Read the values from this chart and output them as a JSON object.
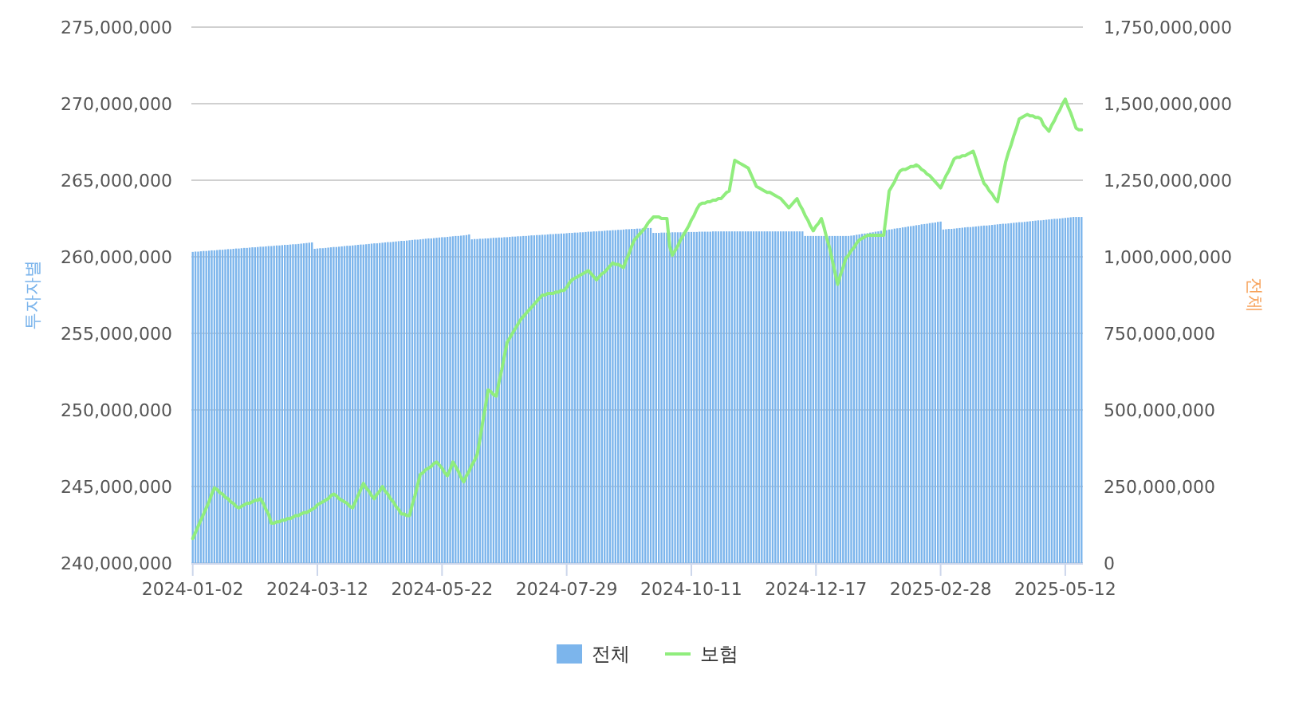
{
  "chart_data": {
    "type": "bar",
    "ylabel": "투자자별",
    "y2label": "전체",
    "grid": "y",
    "legend": "bottom",
    "ylim": [
      240000000,
      275000000
    ],
    "yticks": [
      {
        "value": 240000000,
        "label": "240,000,000"
      },
      {
        "value": 245000000,
        "label": "245,000,000"
      },
      {
        "value": 250000000,
        "label": "250,000,000"
      },
      {
        "value": 255000000,
        "label": "255,000,000"
      },
      {
        "value": 260000000,
        "label": "260,000,000"
      },
      {
        "value": 265000000,
        "label": "265,000,000"
      },
      {
        "value": 270000000,
        "label": "270,000,000"
      },
      {
        "value": 275000000,
        "label": "275,000,000"
      }
    ],
    "y2lim": [
      0,
      1750000000
    ],
    "y2ticks": [
      0,
      {
        "value": 250000000,
        "label": "250,000,000"
      },
      {
        "value": 500000000,
        "label": "500,000,000"
      },
      {
        "value": 750000000,
        "label": "750,000,000"
      },
      {
        "value": 1000000000,
        "label": "1,000,000,000"
      },
      {
        "value": 1250000000,
        "label": "1,250,000,000"
      },
      {
        "value": 1500000000,
        "label": "1,500,000,000"
      },
      {
        "value": 1750000000,
        "label": "1,750,000,000"
      }
    ],
    "categories": [
      "2024-01-02",
      null,
      null,
      null,
      null,
      null,
      null,
      null,
      null,
      null,
      null,
      null,
      null,
      null,
      null,
      null,
      null,
      null,
      null,
      null,
      null,
      null,
      null,
      null,
      null,
      null,
      null,
      null,
      null,
      null,
      null,
      null,
      null,
      null,
      null,
      null,
      null,
      null,
      null,
      null,
      null,
      null,
      null,
      null,
      null,
      null,
      "2024-03-12",
      null,
      null,
      null,
      null,
      null,
      null,
      null,
      null,
      null,
      null,
      null,
      null,
      null,
      null,
      null,
      null,
      null,
      null,
      null,
      null,
      null,
      null,
      null,
      null,
      null,
      null,
      null,
      null,
      null,
      null,
      null,
      null,
      null,
      null,
      null,
      null,
      null,
      null,
      null,
      null,
      null,
      null,
      null,
      null,
      null,
      "2024-05-22",
      null,
      null,
      null,
      null,
      null,
      null,
      null,
      null,
      null,
      null,
      null,
      null,
      null,
      null,
      null,
      null,
      null,
      null,
      null,
      null,
      null,
      null,
      null,
      null,
      null,
      null,
      null,
      null,
      null,
      null,
      null,
      null,
      null,
      null,
      null,
      null,
      null,
      null,
      null,
      null,
      null,
      null,
      null,
      null,
      null,
      "2024-07-29",
      null,
      null,
      null,
      null,
      null,
      null,
      null,
      null,
      null,
      null,
      null,
      null,
      null,
      null,
      null,
      null,
      null,
      null,
      null,
      null,
      null,
      null,
      null,
      null,
      null,
      null,
      null,
      null,
      null,
      null,
      null,
      null,
      null,
      null,
      null,
      null,
      null,
      null,
      null,
      null,
      null,
      null,
      null,
      null,
      null,
      "2024-10-11",
      null,
      null,
      null,
      null,
      null,
      null,
      null,
      null,
      null,
      null,
      null,
      null,
      null,
      null,
      null,
      null,
      null,
      null,
      null,
      null,
      null,
      null,
      null,
      null,
      null,
      null,
      null,
      null,
      null,
      null,
      null,
      null,
      null,
      null,
      null,
      null,
      null,
      null,
      null,
      null,
      null,
      null,
      null,
      null,
      null,
      "2024-12-17",
      null,
      null,
      null,
      null,
      null,
      null,
      null,
      null,
      null,
      null,
      null,
      null,
      null,
      null,
      null,
      null,
      null,
      null,
      null,
      null,
      null,
      null,
      null,
      null,
      null,
      null,
      null,
      null,
      null,
      null,
      null,
      null,
      null,
      null,
      null,
      null,
      null,
      null,
      null,
      null,
      null,
      null,
      null,
      null,
      null,
      "2025-02-28",
      null,
      null,
      null,
      null,
      null,
      null,
      null,
      null,
      null,
      null,
      null,
      null,
      null,
      null,
      null,
      null,
      null,
      null,
      null,
      null,
      null,
      null,
      null,
      null,
      null,
      null,
      null,
      null,
      null,
      null,
      null,
      null,
      null,
      null,
      null,
      null,
      null,
      null,
      null,
      null,
      null,
      null,
      null,
      null,
      null,
      "2025-05-12",
      null,
      null,
      null,
      null,
      null,
      null
    ],
    "series": [
      {
        "name": "전체",
        "type": "bar",
        "axis": "y2",
        "color": "#7cb5ec",
        "values": [
          1016000000.0,
          1017000000.0,
          1017000000.0,
          1018000000.0,
          1019000000.0,
          1019000000.0,
          1020000000.0,
          1021000000.0,
          1021000000.0,
          1022000000.0,
          1023000000.0,
          1023000000.0,
          1024000000.0,
          1025000000.0,
          1025000000.0,
          1026000000.0,
          1027000000.0,
          1027000000.0,
          1028000000.0,
          1029000000.0,
          1029000000.0,
          1030000000.0,
          1031000000.0,
          1031000000.0,
          1032000000.0,
          1033000000.0,
          1033000000.0,
          1034000000.0,
          1035000000.0,
          1035000000.0,
          1036000000.0,
          1037000000.0,
          1037000000.0,
          1038000000.0,
          1039000000.0,
          1039000000.0,
          1040000000.0,
          1041000000.0,
          1041000000.0,
          1042000000.0,
          1043000000.0,
          1044000000.0,
          1045000000.0,
          1046000000.0,
          1047000000.0,
          1026000000.0,
          1027000000.0,
          1028000000.0,
          1028000000.0,
          1029000000.0,
          1030000000.0,
          1031000000.0,
          1032000000.0,
          1032000000.0,
          1033000000.0,
          1034000000.0,
          1035000000.0,
          1036000000.0,
          1036000000.0,
          1037000000.0,
          1038000000.0,
          1039000000.0,
          1040000000.0,
          1040000000.0,
          1041000000.0,
          1042000000.0,
          1043000000.0,
          1044000000.0,
          1044000000.0,
          1045000000.0,
          1046000000.0,
          1047000000.0,
          1048000000.0,
          1048000000.0,
          1049000000.0,
          1050000000.0,
          1051000000.0,
          1052000000.0,
          1052000000.0,
          1053000000.0,
          1054000000.0,
          1055000000.0,
          1056000000.0,
          1056000000.0,
          1057000000.0,
          1058000000.0,
          1059000000.0,
          1060000000.0,
          1060000000.0,
          1061000000.0,
          1062000000.0,
          1063000000.0,
          1064000000.0,
          1064000000.0,
          1065000000.0,
          1066000000.0,
          1067000000.0,
          1068000000.0,
          1068000000.0,
          1069000000.0,
          1070000000.0,
          1071000000.0,
          1073000000.0,
          1057000000.0,
          1058000000.0,
          1058000000.0,
          1059000000.0,
          1059000000.0,
          1060000000.0,
          1060000000.0,
          1061000000.0,
          1062000000.0,
          1062000000.0,
          1063000000.0,
          1063000000.0,
          1064000000.0,
          1064000000.0,
          1065000000.0,
          1066000000.0,
          1066000000.0,
          1067000000.0,
          1067000000.0,
          1068000000.0,
          1068000000.0,
          1069000000.0,
          1070000000.0,
          1070000000.0,
          1071000000.0,
          1071000000.0,
          1072000000.0,
          1072000000.0,
          1073000000.0,
          1074000000.0,
          1074000000.0,
          1075000000.0,
          1075000000.0,
          1076000000.0,
          1076000000.0,
          1077000000.0,
          1078000000.0,
          1078000000.0,
          1079000000.0,
          1079000000.0,
          1080000000.0,
          1080000000.0,
          1081000000.0,
          1082000000.0,
          1082000000.0,
          1083000000.0,
          1083000000.0,
          1084000000.0,
          1084000000.0,
          1085000000.0,
          1086000000.0,
          1086000000.0,
          1087000000.0,
          1087000000.0,
          1088000000.0,
          1088000000.0,
          1089000000.0,
          1090000000.0,
          1090000000.0,
          1091000000.0,
          1091000000.0,
          1092000000.0,
          1092000000.0,
          1093000000.0,
          1093000000.0,
          1094000000.0,
          1094000000.0,
          1078000000.0,
          1078000000.0,
          1078000000.0,
          1079000000.0,
          1079000000.0,
          1079000000.0,
          1079000000.0,
          1080000000.0,
          1080000000.0,
          1080000000.0,
          1080000000.0,
          1080000000.0,
          1081000000.0,
          1081000000.0,
          1081000000.0,
          1081000000.0,
          1081000000.0,
          1082000000.0,
          1082000000.0,
          1082000000.0,
          1082000000.0,
          1082000000.0,
          1083000000.0,
          1083000000.0,
          1083000000.0,
          1083000000.0,
          1083000000.0,
          1083000000.0,
          1083000000.0,
          1083000000.0,
          1083000000.0,
          1083000000.0,
          1083000000.0,
          1083000000.0,
          1083000000.0,
          1083000000.0,
          1083000000.0,
          1083000000.0,
          1083000000.0,
          1083000000.0,
          1083000000.0,
          1083000000.0,
          1083000000.0,
          1083000000.0,
          1083000000.0,
          1083000000.0,
          1083000000.0,
          1083000000.0,
          1083000000.0,
          1083000000.0,
          1083000000.0,
          1083000000.0,
          1083000000.0,
          1083000000.0,
          1083000000.0,
          1083000000.0,
          1068000000.0,
          1068000000.0,
          1068000000.0,
          1068000000.0,
          1068000000.0,
          1068000000.0,
          1068000000.0,
          1068000000.0,
          1068000000.0,
          1068000000.0,
          1068000000.0,
          1068000000.0,
          1068000000.0,
          1068000000.0,
          1068000000.0,
          1068000000.0,
          1068000000.0,
          1069000000.0,
          1070000000.0,
          1072000000.0,
          1073000000.0,
          1075000000.0,
          1076000000.0,
          1077000000.0,
          1079000000.0,
          1080000000.0,
          1082000000.0,
          1083000000.0,
          1085000000.0,
          1086000000.0,
          1087000000.0,
          1089000000.0,
          1090000000.0,
          1092000000.0,
          1093000000.0,
          1094000000.0,
          1096000000.0,
          1097000000.0,
          1099000000.0,
          1100000000.0,
          1101000000.0,
          1103000000.0,
          1104000000.0,
          1106000000.0,
          1107000000.0,
          1108000000.0,
          1110000000.0,
          1111000000.0,
          1112000000.0,
          1114000000.0,
          1115000000.0,
          1089000000.0,
          1090000000.0,
          1091000000.0,
          1091000000.0,
          1092000000.0,
          1093000000.0,
          1094000000.0,
          1095000000.0,
          1096000000.0,
          1097000000.0,
          1097000000.0,
          1098000000.0,
          1099000000.0,
          1100000000.0,
          1101000000.0,
          1102000000.0,
          1102000000.0,
          1103000000.0,
          1104000000.0,
          1105000000.0,
          1106000000.0,
          1107000000.0,
          1108000000.0,
          1108000000.0,
          1109000000.0,
          1110000000.0,
          1111000000.0,
          1112000000.0,
          1113000000.0,
          1113000000.0,
          1114000000.0,
          1115000000.0,
          1116000000.0,
          1117000000.0,
          1118000000.0,
          1119000000.0,
          1119000000.0,
          1120000000.0,
          1121000000.0,
          1122000000.0,
          1123000000.0,
          1124000000.0,
          1124000000.0,
          1125000000.0,
          1126000000.0,
          1127000000.0,
          1128000000.0,
          1129000000.0,
          1130000000.0,
          1130000000.0,
          1130000000.0,
          1130000000.0
        ]
      },
      {
        "name": "보험",
        "type": "line",
        "color": "#90ed7d",
        "values": [
          241600000.0,
          242000000.0,
          242400000.0,
          242800000.0,
          243200000.0,
          243600000.0,
          244000000.0,
          244500000.0,
          244900000.0,
          244800000.0,
          244600000.0,
          244500000.0,
          244300000.0,
          244200000.0,
          244000000.0,
          243900000.0,
          243700000.0,
          243600000.0,
          243700000.0,
          243800000.0,
          243900000.0,
          243900000.0,
          244000000.0,
          244100000.0,
          244100000.0,
          244200000.0,
          243900000.0,
          243500000.0,
          243200000.0,
          242600000.0,
          242600000.0,
          242700000.0,
          242700000.0,
          242800000.0,
          242800000.0,
          242900000.0,
          242900000.0,
          243000000.0,
          243100000.0,
          243100000.0,
          243200000.0,
          243300000.0,
          243300000.0,
          243400000.0,
          243500000.0,
          243600000.0,
          243800000.0,
          243900000.0,
          244000000.0,
          244100000.0,
          244200000.0,
          244400000.0,
          244500000.0,
          244400000.0,
          244200000.0,
          244100000.0,
          244000000.0,
          243900000.0,
          243700000.0,
          243600000.0,
          244000000.0,
          244400000.0,
          244800000.0,
          245200000.0,
          244900000.0,
          244700000.0,
          244400000.0,
          244200000.0,
          244500000.0,
          244700000.0,
          245000000.0,
          244700000.0,
          244500000.0,
          244200000.0,
          244000000.0,
          243700000.0,
          243500000.0,
          243200000.0,
          243200000.0,
          243100000.0,
          243100000.0,
          243800000.0,
          244400000.0,
          245100000.0,
          245800000.0,
          245900000.0,
          246100000.0,
          246200000.0,
          246300000.0,
          246500000.0,
          246600000.0,
          246400000.0,
          246200000.0,
          245900000.0,
          245700000.0,
          246100000.0,
          246600000.0,
          246300000.0,
          246000000.0,
          245600000.0,
          245300000.0,
          245700000.0,
          246000000.0,
          246400000.0,
          246700000.0,
          247100000.0,
          248100000.0,
          249200000.0,
          250200000.0,
          251300000.0,
          251200000.0,
          251000000.0,
          250900000.0,
          251800000.0,
          252600000.0,
          253500000.0,
          254400000.0,
          254700000.0,
          255000000.0,
          255300000.0,
          255600000.0,
          255900000.0,
          256100000.0,
          256300000.0,
          256500000.0,
          256700000.0,
          256900000.0,
          257100000.0,
          257300000.0,
          257500000.0,
          257500000.0,
          257600000.0,
          257600000.0,
          257600000.0,
          257700000.0,
          257700000.0,
          257800000.0,
          257800000.0,
          258000000.0,
          258300000.0,
          258500000.0,
          258600000.0,
          258700000.0,
          258800000.0,
          258900000.0,
          259000000.0,
          259100000.0,
          258900000.0,
          258700000.0,
          258500000.0,
          258700000.0,
          258900000.0,
          259000000.0,
          259200000.0,
          259400000.0,
          259600000.0,
          259500000.0,
          259500000.0,
          259400000.0,
          259300000.0,
          259800000.0,
          260200000.0,
          260700000.0,
          261100000.0,
          261300000.0,
          261500000.0,
          261700000.0,
          261900000.0,
          262200000.0,
          262400000.0,
          262600000.0,
          262600000.0,
          262600000.0,
          262500000.0,
          262500000.0,
          262500000.0,
          260700000.0,
          260100000.0,
          260400000.0,
          260700000.0,
          261100000.0,
          261400000.0,
          261700000.0,
          262000000.0,
          262400000.0,
          262700000.0,
          263100000.0,
          263400000.0,
          263500000.0,
          263500000.0,
          263600000.0,
          263600000.0,
          263700000.0,
          263700000.0,
          263800000.0,
          263800000.0,
          264000000.0,
          264200000.0,
          264300000.0,
          265300000.0,
          266300000.0,
          266200000.0,
          266100000.0,
          266000000.0,
          265900000.0,
          265800000.0,
          265400000.0,
          265000000.0,
          264600000.0,
          264500000.0,
          264400000.0,
          264300000.0,
          264200000.0,
          264200000.0,
          264100000.0,
          264000000.0,
          263900000.0,
          263800000.0,
          263600000.0,
          263400000.0,
          263200000.0,
          263400000.0,
          263600000.0,
          263800000.0,
          263400000.0,
          263100000.0,
          262700000.0,
          262400000.0,
          262000000.0,
          261700000.0,
          262000000.0,
          262200000.0,
          262500000.0,
          261900000.0,
          261200000.0,
          260600000.0,
          259800000.0,
          259000000.0,
          258200000.0,
          258800000.0,
          259300000.0,
          259900000.0,
          260100000.0,
          260400000.0,
          260600000.0,
          260900000.0,
          261100000.0,
          261200000.0,
          261300000.0,
          261400000.0,
          261400000.0,
          261400000.0,
          261400000.0,
          261400000.0,
          261400000.0,
          261400000.0,
          262800000.0,
          264300000.0,
          264600000.0,
          264900000.0,
          265300000.0,
          265600000.0,
          265700000.0,
          265700000.0,
          265800000.0,
          265900000.0,
          265900000.0,
          266000000.0,
          265900000.0,
          265700000.0,
          265600000.0,
          265400000.0,
          265300000.0,
          265100000.0,
          264900000.0,
          264700000.0,
          264500000.0,
          264900000.0,
          265300000.0,
          265600000.0,
          266000000.0,
          266400000.0,
          266500000.0,
          266500000.0,
          266600000.0,
          266600000.0,
          266700000.0,
          266800000.0,
          266900000.0,
          266400000.0,
          265800000.0,
          265300000.0,
          264800000.0,
          264600000.0,
          264300000.0,
          264100000.0,
          263800000.0,
          263600000.0,
          264500000.0,
          265300000.0,
          266200000.0,
          266800000.0,
          267300000.0,
          267900000.0,
          268400000.0,
          269000000.0,
          269100000.0,
          269200000.0,
          269300000.0,
          269200000.0,
          269200000.0,
          269100000.0,
          269100000.0,
          269000000.0,
          268600000.0,
          268400000.0,
          268200000.0,
          268600000.0,
          268900000.0,
          269300000.0,
          269600000.0,
          270000000.0,
          270300000.0,
          269800000.0,
          269400000.0,
          268900000.0,
          268400000.0,
          268300000.0,
          268300000.0
        ]
      }
    ]
  }
}
